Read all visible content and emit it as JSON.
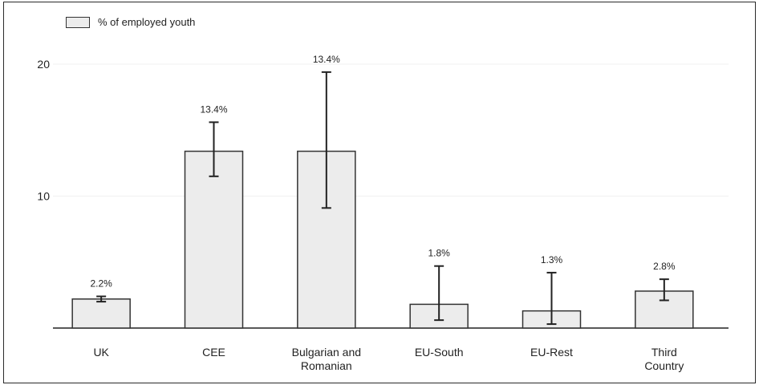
{
  "legend": {
    "label": "% of employed youth",
    "swatch_color": "#ececec"
  },
  "chart_data": {
    "type": "bar",
    "categories": [
      [
        "UK"
      ],
      [
        "CEE"
      ],
      [
        "Bulgarian and",
        "Romanian"
      ],
      [
        "EU-South"
      ],
      [
        "EU-Rest"
      ],
      [
        "Third",
        "Country"
      ]
    ],
    "series": [
      {
        "name": "% of employed youth",
        "values": [
          2.2,
          13.4,
          13.4,
          1.8,
          1.3,
          2.8
        ]
      }
    ],
    "error_bars": [
      [
        2.0,
        2.4
      ],
      [
        11.5,
        15.6
      ],
      [
        9.1,
        19.4
      ],
      [
        0.6,
        4.7
      ],
      [
        0.3,
        4.2
      ],
      [
        2.1,
        3.7
      ]
    ],
    "data_labels": [
      "2.2%",
      "13.4%",
      "13.4%",
      "1.8%",
      "1.3%",
      "2.8%"
    ],
    "yticks": [
      10,
      20
    ],
    "ylim": [
      0,
      20
    ],
    "grid": true,
    "legend_position": "top-left",
    "bar_color": "#ececec",
    "bar_edge_color": "#333333"
  }
}
